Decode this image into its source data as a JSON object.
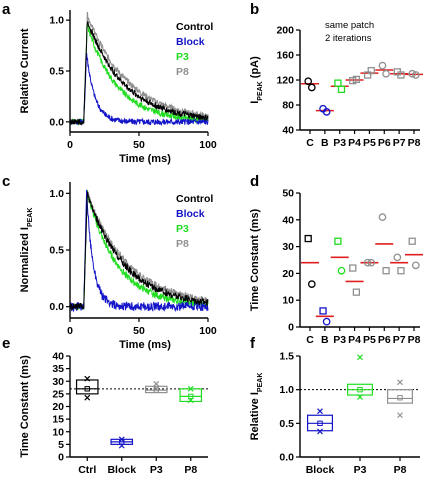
{
  "colors": {
    "Control": "#000000",
    "Block": "#1414c8",
    "P3": "#22dd22",
    "P8": "#909090",
    "mean": "#e02020"
  },
  "chart_data": [
    {
      "panel": "a",
      "type": "line",
      "xlabel": "Time (ms)",
      "ylabel": "Relative Current",
      "xlim": [
        0,
        100
      ],
      "ylim": [
        -0.1,
        1.1
      ],
      "xticks": [
        0,
        50,
        100
      ],
      "yticks": [
        0.0,
        0.5,
        1.0
      ],
      "yticklabels": [
        "0.0",
        "0.5",
        "1.0"
      ],
      "legend": [
        "Control",
        "Block",
        "P3",
        "P8"
      ],
      "series": [
        {
          "name": "Control",
          "color": "#000000",
          "onset": 10,
          "rise": 2.5,
          "peak": 1.0,
          "tau": 27,
          "noise": 0.03
        },
        {
          "name": "Block",
          "color": "#1414c8",
          "onset": 10,
          "rise": 2,
          "peak": 0.68,
          "tau": 6,
          "noise": 0.03
        },
        {
          "name": "P3",
          "color": "#22dd22",
          "onset": 10,
          "rise": 2.5,
          "peak": 0.95,
          "tau": 22,
          "noise": 0.03
        },
        {
          "name": "P8",
          "color": "#909090",
          "onset": 10,
          "rise": 2.5,
          "peak": 1.05,
          "tau": 30,
          "noise": 0.03
        }
      ]
    },
    {
      "panel": "b",
      "type": "scatter",
      "ylabel": "I",
      "ylabel_sub": "PEAK",
      "ylabel_unit": " (pA)",
      "categories": [
        "C",
        "B",
        "P3",
        "P4",
        "P5",
        "P6",
        "P7",
        "P8"
      ],
      "ylim": [
        40,
        200
      ],
      "yticks": [
        40,
        80,
        120,
        160,
        200
      ],
      "annotation": [
        "same patch",
        "2 iterations"
      ],
      "points": [
        {
          "cat": "C",
          "values": [
            118,
            108
          ],
          "mean": 114,
          "color": "#000000",
          "marker": "circle"
        },
        {
          "cat": "B",
          "values": [
            74,
            69
          ],
          "mean": 71,
          "color": "#1414c8",
          "marker": "circle"
        },
        {
          "cat": "P3",
          "values": [
            115,
            105
          ],
          "mean": 110,
          "color": "#22dd22",
          "marker": "square"
        },
        {
          "cat": "P4",
          "values": [
            119,
            121
          ],
          "mean": 120,
          "color": "#909090",
          "marker": "square"
        },
        {
          "cat": "P5",
          "values": [
            128,
            135
          ],
          "mean": 131,
          "color": "#909090",
          "marker": "square"
        },
        {
          "cat": "P6",
          "values": [
            143,
            130
          ],
          "mean": 136,
          "color": "#909090",
          "marker": "circle"
        },
        {
          "cat": "P7",
          "values": [
            133,
            128
          ],
          "mean": 130,
          "color": "#909090",
          "marker": "square"
        },
        {
          "cat": "P8",
          "values": [
            130,
            128
          ],
          "mean": 129,
          "color": "#909090",
          "marker": "circle"
        }
      ]
    },
    {
      "panel": "c",
      "type": "line",
      "xlabel": "Time (ms)",
      "ylabel": "Normalized I",
      "ylabel_sub": "PEAK",
      "xlim": [
        0,
        100
      ],
      "ylim": [
        -0.1,
        1.1
      ],
      "xticks": [
        0,
        50,
        100
      ],
      "yticks": [
        0.0,
        0.5,
        1.0
      ],
      "yticklabels": [
        "0.0",
        "0.5",
        "1.0"
      ],
      "legend": [
        "Control",
        "Block",
        "P3",
        "P8"
      ],
      "series": [
        {
          "name": "Control",
          "color": "#000000",
          "onset": 10,
          "rise": 2.5,
          "peak": 1.0,
          "tau": 27,
          "noise": 0.03
        },
        {
          "name": "Block",
          "color": "#1414c8",
          "onset": 10,
          "rise": 2,
          "peak": 1.0,
          "tau": 5,
          "noise": 0.04
        },
        {
          "name": "P3",
          "color": "#22dd22",
          "onset": 10,
          "rise": 2.5,
          "peak": 1.0,
          "tau": 22,
          "noise": 0.03
        },
        {
          "name": "P8",
          "color": "#909090",
          "onset": 10,
          "rise": 2.5,
          "peak": 1.0,
          "tau": 30,
          "noise": 0.03
        }
      ]
    },
    {
      "panel": "d",
      "type": "scatter",
      "ylabel": "Time Constant (ms)",
      "categories": [
        "C",
        "B",
        "P3",
        "P4",
        "P5",
        "P6",
        "P7",
        "P8"
      ],
      "ylim": [
        0,
        50
      ],
      "yticks": [
        0,
        10,
        20,
        30,
        40,
        50
      ],
      "points": [
        {
          "cat": "C",
          "values": [
            33,
            16
          ],
          "mean": 24,
          "color": "#000000",
          "marker": "square_circle"
        },
        {
          "cat": "B",
          "values": [
            6,
            2
          ],
          "mean": 4,
          "color": "#1414c8",
          "marker": "square_circle"
        },
        {
          "cat": "P3",
          "values": [
            32,
            21
          ],
          "mean": 26,
          "color": "#22dd22",
          "marker": "square_circle"
        },
        {
          "cat": "P4",
          "values": [
            22,
            13
          ],
          "mean": 17,
          "color": "#909090",
          "marker": "square"
        },
        {
          "cat": "P5",
          "values": [
            24,
            24
          ],
          "mean": 24,
          "color": "#909090",
          "marker": "circle"
        },
        {
          "cat": "P6",
          "values": [
            41,
            21
          ],
          "mean": 31,
          "color": "#909090",
          "marker": "circle_square"
        },
        {
          "cat": "P7",
          "values": [
            26,
            21
          ],
          "mean": 24,
          "color": "#909090",
          "marker": "circle_square"
        },
        {
          "cat": "P8",
          "values": [
            32,
            23
          ],
          "mean": 27,
          "color": "#909090",
          "marker": "square_circle"
        }
      ]
    },
    {
      "panel": "e",
      "type": "box",
      "ylabel": "Time Constant (ms)",
      "categories": [
        "Ctrl",
        "Block",
        "P3",
        "P8"
      ],
      "ylim": [
        0,
        40
      ],
      "yticks": [
        0,
        5,
        10,
        15,
        20,
        25,
        30,
        35,
        40
      ],
      "reference_line": 27,
      "boxes": [
        {
          "cat": "Ctrl",
          "q1": 25,
          "median": 27,
          "q3": 30.5,
          "mean": 27,
          "points": [
            31,
            23.5
          ],
          "color": "#000000"
        },
        {
          "cat": "Block",
          "q1": 5,
          "median": 6,
          "q3": 7,
          "mean": 6,
          "points": [
            7,
            4.5
          ],
          "color": "#1414c8"
        },
        {
          "cat": "P3",
          "q1": 25.5,
          "median": 26.5,
          "q3": 28,
          "mean": 26.5,
          "points": [
            29,
            27
          ],
          "color": "#909090"
        },
        {
          "cat": "P8",
          "q1": 22,
          "median": 24,
          "q3": 27,
          "mean": 24,
          "points": [
            27,
            22.5
          ],
          "color": "#22dd22"
        }
      ]
    },
    {
      "panel": "f",
      "type": "box",
      "ylabel": "Relative I",
      "ylabel_sub": "PEAK",
      "categories": [
        "Block",
        "P3",
        "P8"
      ],
      "ylim": [
        0,
        1.5
      ],
      "yticks": [
        0,
        0.5,
        1.0,
        1.5
      ],
      "yticklabels": [
        "0.0",
        "0.5",
        "1.0",
        "1.5"
      ],
      "reference_line": 1.0,
      "boxes": [
        {
          "cat": "Block",
          "q1": 0.39,
          "median": 0.5,
          "q3": 0.62,
          "mean": 0.5,
          "points": [
            0.68,
            0.38
          ],
          "color": "#1414c8"
        },
        {
          "cat": "P3",
          "q1": 0.92,
          "median": 1.0,
          "q3": 1.08,
          "mean": 1.0,
          "points": [
            1.48,
            0.89
          ],
          "color": "#22dd22"
        },
        {
          "cat": "P8",
          "q1": 0.8,
          "median": 0.87,
          "q3": 1.0,
          "mean": 0.88,
          "points": [
            1.11,
            0.62
          ],
          "color": "#909090"
        }
      ]
    }
  ]
}
